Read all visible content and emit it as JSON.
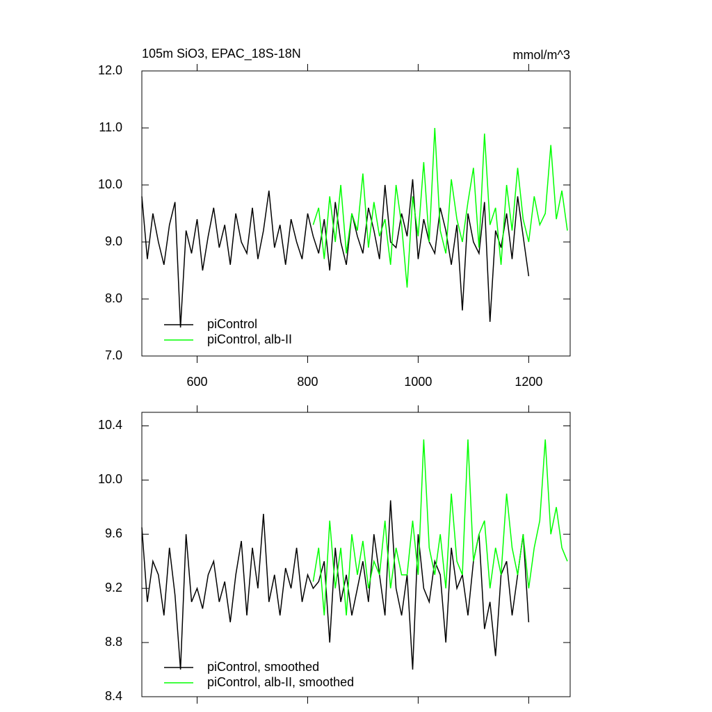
{
  "chart_data": [
    {
      "type": "line",
      "title": "105m SiO3, EPAC_18S-18N",
      "subtitle": "mmol/m^3",
      "xlim": [
        500,
        1275
      ],
      "xticks": [
        600,
        800,
        1000,
        1200
      ],
      "ylim": [
        7,
        12
      ],
      "yticks": [
        {
          "value": 7,
          "label": "7.0"
        },
        {
          "value": 8,
          "label": "8.0"
        },
        {
          "value": 9,
          "label": "9.0"
        },
        {
          "value": 10,
          "label": "10.0"
        },
        {
          "value": 11,
          "label": "11.0"
        },
        {
          "value": 12,
          "label": "12.0"
        }
      ],
      "series": [
        {
          "name": "piControl",
          "color": "#000000",
          "x": [
            500,
            510,
            520,
            530,
            540,
            550,
            560,
            570,
            580,
            590,
            600,
            610,
            620,
            630,
            640,
            650,
            660,
            670,
            680,
            690,
            700,
            710,
            720,
            730,
            740,
            750,
            760,
            770,
            780,
            790,
            800,
            810,
            820,
            830,
            840,
            850,
            860,
            870,
            880,
            890,
            900,
            910,
            920,
            930,
            940,
            950,
            960,
            970,
            980,
            990,
            1000,
            1010,
            1020,
            1030,
            1040,
            1050,
            1060,
            1070,
            1080,
            1090,
            1100,
            1110,
            1120,
            1130,
            1140,
            1150,
            1160,
            1170,
            1180,
            1190,
            1200
          ],
          "values": [
            9.8,
            8.7,
            9.5,
            9.0,
            8.6,
            9.3,
            9.7,
            7.5,
            9.2,
            8.8,
            9.4,
            8.5,
            9.1,
            9.6,
            8.9,
            9.3,
            8.6,
            9.5,
            9.0,
            8.8,
            9.6,
            8.7,
            9.2,
            9.9,
            8.9,
            9.3,
            8.6,
            9.4,
            9.0,
            8.7,
            9.5,
            9.1,
            8.8,
            9.4,
            8.5,
            9.7,
            9.0,
            8.6,
            9.5,
            9.1,
            8.8,
            9.6,
            9.2,
            8.7,
            10.0,
            9.0,
            8.9,
            9.5,
            9.1,
            10.1,
            8.7,
            9.4,
            9.0,
            8.8,
            9.6,
            9.2,
            8.6,
            9.3,
            7.8,
            9.5,
            9.0,
            8.8,
            9.7,
            7.6,
            9.2,
            8.9,
            9.5,
            8.7,
            9.8,
            9.1,
            8.4
          ]
        },
        {
          "name": "piControl, alb-II",
          "color": "#00ff00",
          "x": [
            810,
            820,
            830,
            840,
            850,
            860,
            870,
            880,
            890,
            900,
            910,
            920,
            930,
            940,
            950,
            960,
            970,
            980,
            990,
            1000,
            1010,
            1020,
            1030,
            1040,
            1050,
            1060,
            1070,
            1080,
            1090,
            1100,
            1110,
            1120,
            1130,
            1140,
            1150,
            1160,
            1170,
            1180,
            1190,
            1200,
            1210,
            1220,
            1230,
            1240,
            1250,
            1260,
            1270
          ],
          "values": [
            9.3,
            9.6,
            8.7,
            9.8,
            9.0,
            10.0,
            8.8,
            9.5,
            9.2,
            10.2,
            8.9,
            9.7,
            9.1,
            9.4,
            8.6,
            10.0,
            9.3,
            8.2,
            9.8,
            9.1,
            10.4,
            9.0,
            11.0,
            9.2,
            8.8,
            10.1,
            9.4,
            9.0,
            9.7,
            10.3,
            8.9,
            10.9,
            9.3,
            9.6,
            8.6,
            10.0,
            9.2,
            10.3,
            9.4,
            9.0,
            9.8,
            9.3,
            9.5,
            10.7,
            9.4,
            9.9,
            9.2
          ]
        }
      ]
    },
    {
      "type": "line",
      "xlim": [
        500,
        1275
      ],
      "xticks": [
        600,
        800,
        1000,
        1200
      ],
      "ylim": [
        8.4,
        10.5
      ],
      "yticks": [
        8.4,
        8.8,
        9.2,
        9.6,
        {
          "value": 10,
          "label": "10.0"
        },
        10.4
      ],
      "series": [
        {
          "name": "piControl, smoothed",
          "color": "#000000",
          "x": [
            500,
            510,
            520,
            530,
            540,
            550,
            560,
            570,
            580,
            590,
            600,
            610,
            620,
            630,
            640,
            650,
            660,
            670,
            680,
            690,
            700,
            710,
            720,
            730,
            740,
            750,
            760,
            770,
            780,
            790,
            800,
            810,
            820,
            830,
            840,
            850,
            860,
            870,
            880,
            890,
            900,
            910,
            920,
            930,
            940,
            950,
            960,
            970,
            980,
            990,
            1000,
            1010,
            1020,
            1030,
            1040,
            1050,
            1060,
            1070,
            1080,
            1090,
            1100,
            1110,
            1120,
            1130,
            1140,
            1150,
            1160,
            1170,
            1180,
            1190,
            1200
          ],
          "values": [
            9.65,
            9.1,
            9.4,
            9.3,
            9.0,
            9.5,
            9.15,
            8.6,
            9.6,
            9.1,
            9.2,
            9.05,
            9.3,
            9.4,
            9.1,
            9.25,
            8.95,
            9.3,
            9.55,
            9.0,
            9.5,
            9.2,
            9.75,
            9.1,
            9.3,
            9.0,
            9.35,
            9.2,
            9.5,
            9.1,
            9.3,
            9.2,
            9.25,
            9.4,
            8.8,
            9.5,
            9.1,
            9.3,
            9.0,
            9.2,
            9.4,
            9.1,
            9.6,
            9.3,
            9.0,
            9.85,
            9.2,
            9.0,
            9.3,
            8.6,
            9.6,
            9.2,
            9.1,
            9.4,
            9.3,
            8.8,
            9.5,
            9.2,
            9.3,
            9.0,
            9.4,
            9.6,
            8.9,
            9.1,
            8.7,
            9.3,
            9.4,
            9.0,
            9.3,
            9.6,
            8.95
          ]
        },
        {
          "name": "piControl, alb-II, smoothed",
          "color": "#00ff00",
          "x": [
            810,
            820,
            830,
            840,
            850,
            860,
            870,
            880,
            890,
            900,
            910,
            920,
            930,
            940,
            950,
            960,
            970,
            980,
            990,
            1000,
            1010,
            1020,
            1030,
            1040,
            1050,
            1060,
            1070,
            1080,
            1090,
            1100,
            1110,
            1120,
            1130,
            1140,
            1150,
            1160,
            1170,
            1180,
            1190,
            1200,
            1210,
            1220,
            1230,
            1240,
            1250,
            1260,
            1270
          ],
          "values": [
            9.25,
            9.5,
            9.0,
            9.7,
            9.2,
            9.5,
            9.0,
            9.6,
            9.3,
            9.55,
            9.2,
            9.4,
            9.3,
            9.7,
            9.2,
            9.5,
            9.3,
            9.3,
            9.7,
            9.3,
            10.3,
            9.5,
            9.3,
            9.6,
            9.2,
            9.9,
            9.4,
            9.3,
            10.3,
            9.4,
            9.6,
            9.7,
            9.2,
            9.5,
            9.3,
            9.9,
            9.5,
            9.3,
            9.6,
            9.2,
            9.5,
            9.7,
            10.3,
            9.6,
            9.8,
            9.5,
            9.4
          ]
        }
      ]
    }
  ]
}
